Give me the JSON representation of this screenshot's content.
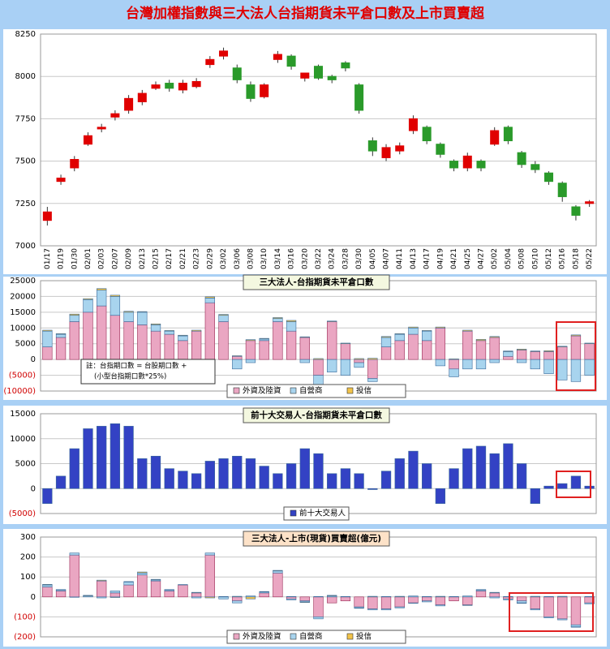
{
  "chart_data": [
    {
      "type": "candlestick",
      "title": "台灣加權指數與三大法人台指期貨未平倉口數及上市買賣超",
      "categories": [
        "01/17",
        "01/19",
        "01/30",
        "02/01",
        "02/03",
        "02/07",
        "02/09",
        "02/13",
        "02/15",
        "02/17",
        "02/21",
        "02/23",
        "02/29",
        "03/02",
        "03/06",
        "03/08",
        "03/10",
        "03/14",
        "03/16",
        "03/20",
        "03/22",
        "03/24",
        "03/28",
        "03/30",
        "04/05",
        "04/07",
        "04/11",
        "04/13",
        "04/17",
        "04/19",
        "04/21",
        "04/25",
        "04/27",
        "05/02",
        "05/04",
        "05/08",
        "05/10",
        "05/12",
        "05/16",
        "05/18",
        "05/22"
      ],
      "open": [
        7150,
        7380,
        7460,
        7600,
        7690,
        7760,
        7800,
        7850,
        7930,
        7960,
        7920,
        7940,
        8070,
        8120,
        8050,
        7950,
        7880,
        8100,
        8120,
        7990,
        8060,
        8000,
        8080,
        7950,
        7620,
        7520,
        7560,
        7680,
        7700,
        7600,
        7500,
        7460,
        7500,
        7600,
        7700,
        7550,
        7480,
        7430,
        7370,
        7230,
        7250
      ],
      "high": [
        7230,
        7420,
        7530,
        7670,
        7720,
        7800,
        7890,
        7920,
        7970,
        7980,
        7980,
        7990,
        8120,
        8170,
        8070,
        7970,
        7960,
        8150,
        8130,
        8020,
        8070,
        8010,
        8090,
        7960,
        7640,
        7600,
        7610,
        7770,
        7710,
        7610,
        7510,
        7550,
        7510,
        7700,
        7710,
        7560,
        7500,
        7440,
        7380,
        7240,
        7270
      ],
      "low": [
        7120,
        7360,
        7440,
        7590,
        7670,
        7740,
        7780,
        7830,
        7920,
        7910,
        7900,
        7930,
        8050,
        8100,
        7960,
        7850,
        7870,
        8080,
        8040,
        7970,
        7980,
        7960,
        8030,
        7780,
        7530,
        7500,
        7540,
        7660,
        7600,
        7520,
        7440,
        7440,
        7440,
        7590,
        7600,
        7460,
        7430,
        7360,
        7260,
        7150,
        7230
      ],
      "close": [
        7200,
        7400,
        7510,
        7650,
        7700,
        7780,
        7870,
        7900,
        7950,
        7930,
        7960,
        7970,
        8100,
        8150,
        7980,
        7870,
        7950,
        8130,
        8060,
        8020,
        7990,
        7980,
        8050,
        7800,
        7560,
        7580,
        7590,
        7750,
        7620,
        7540,
        7460,
        7530,
        7460,
        7680,
        7620,
        7480,
        7450,
        7380,
        7290,
        7180,
        7260
      ],
      "up_color": "#e00000",
      "down_color": "#2a9a2a",
      "ylim": [
        7000,
        8250
      ],
      "yticks": [
        7000,
        7250,
        7500,
        7750,
        8000,
        8250
      ],
      "grid": true
    },
    {
      "type": "bar",
      "stacked": true,
      "title": "三大法人-台指期貨未平倉口數",
      "series": [
        {
          "name": "外資及陸資",
          "color": "#eaa6c2",
          "values": [
            4000,
            7000,
            12000,
            15000,
            17000,
            14000,
            12000,
            11000,
            9000,
            8000,
            6000,
            9000,
            18000,
            12000,
            1000,
            6000,
            6000,
            12000,
            9000,
            7000,
            -5000,
            12000,
            5000,
            -1000,
            -6000,
            4000,
            6000,
            8000,
            6000,
            10000,
            -3000,
            9000,
            6000,
            7000,
            1000,
            3000,
            2500,
            2500,
            4000,
            7500,
            5000
          ]
        },
        {
          "name": "自營商",
          "color": "#a8d4ee",
          "values": [
            5000,
            1000,
            2000,
            4000,
            5000,
            6000,
            3000,
            4000,
            2000,
            1000,
            1500,
            -2000,
            1500,
            2000,
            -3000,
            -1000,
            500,
            1000,
            3000,
            -1000,
            -5000,
            -4000,
            -5000,
            -1500,
            -1000,
            3000,
            2000,
            2000,
            3000,
            -2000,
            -2500,
            -3000,
            -3000,
            -1000,
            1500,
            -1000,
            -3000,
            -4500,
            -6500,
            -7000,
            -5000
          ]
        },
        {
          "name": "投信",
          "color": "#f2c34a",
          "values": [
            300,
            200,
            400,
            300,
            500,
            400,
            300,
            200,
            300,
            200,
            200,
            300,
            400,
            300,
            200,
            300,
            200,
            300,
            400,
            200,
            300,
            200,
            200,
            300,
            400,
            300,
            200,
            300,
            200,
            300,
            200,
            300,
            400,
            300,
            200,
            300,
            200,
            300,
            200,
            300,
            200
          ]
        }
      ],
      "annotation": [
        "註：台指期口數 = 台股期口數 +",
        "(小型台指期口數*25%)"
      ],
      "ylim": [
        -10000,
        25000
      ],
      "yticks": [
        {
          "value": -10000,
          "label": "(10000)"
        },
        {
          "value": -5000,
          "label": "(5000)"
        },
        0,
        5000,
        10000,
        15000,
        20000,
        25000
      ],
      "grid": true
    },
    {
      "type": "bar",
      "title": "前十大交易人-台指期貨未平倉口數",
      "series": [
        {
          "name": "前十大交易人",
          "color": "#3342c4",
          "values": [
            -3000,
            2500,
            8000,
            12000,
            12500,
            13000,
            12500,
            6000,
            6500,
            4000,
            3500,
            3000,
            5500,
            6000,
            6500,
            6000,
            4500,
            3000,
            5000,
            8000,
            7000,
            3000,
            4000,
            3000,
            -200,
            3500,
            6000,
            7500,
            5000,
            -3000,
            4000,
            8000,
            8500,
            7000,
            9000,
            5000,
            -3000,
            500,
            1000,
            2500,
            500
          ]
        }
      ],
      "ylim": [
        -5000,
        15000
      ],
      "yticks": [
        {
          "value": -5000,
          "label": "(5000)"
        },
        0,
        5000,
        10000,
        15000
      ],
      "grid": true
    },
    {
      "type": "bar",
      "stacked": true,
      "title": "三大法人-上市(現貨)買賣超(億元)",
      "series": [
        {
          "name": "外資及陸資",
          "color": "#eaa6c2",
          "values": [
            50,
            30,
            210,
            0,
            80,
            20,
            60,
            110,
            80,
            30,
            60,
            20,
            210,
            0,
            -20,
            0,
            20,
            120,
            -10,
            -20,
            -100,
            -30,
            -20,
            -50,
            -60,
            -60,
            -50,
            -30,
            -20,
            -40,
            -20,
            -40,
            30,
            20,
            -10,
            -20,
            -60,
            -100,
            -110,
            -140,
            -30
          ]
        },
        {
          "name": "自營商",
          "color": "#a8d4ee",
          "values": [
            10,
            5,
            10,
            5,
            -5,
            10,
            15,
            10,
            5,
            5,
            0,
            -5,
            10,
            -10,
            -10,
            5,
            5,
            10,
            -5,
            -5,
            -10,
            5,
            0,
            -5,
            -5,
            -5,
            -5,
            5,
            -5,
            -5,
            0,
            5,
            5,
            -5,
            -5,
            -10,
            -5,
            -5,
            -5,
            -10,
            -5
          ]
        },
        {
          "name": "投信",
          "color": "#f2c34a",
          "values": [
            3,
            2,
            -2,
            3,
            4,
            -3,
            2,
            5,
            3,
            2,
            2,
            3,
            -5,
            2,
            3,
            -10,
            2,
            3,
            2,
            -3,
            2,
            3,
            2,
            -2,
            3,
            2,
            3,
            -2,
            2,
            3,
            2,
            -3,
            2,
            3,
            2,
            -2,
            3,
            2,
            3,
            -2,
            2
          ]
        }
      ],
      "ylim": [
        -200,
        300
      ],
      "yticks": [
        {
          "value": -200,
          "label": "(200)"
        },
        {
          "value": -100,
          "label": "(100)"
        },
        0,
        100,
        200,
        300
      ],
      "grid": true
    }
  ]
}
